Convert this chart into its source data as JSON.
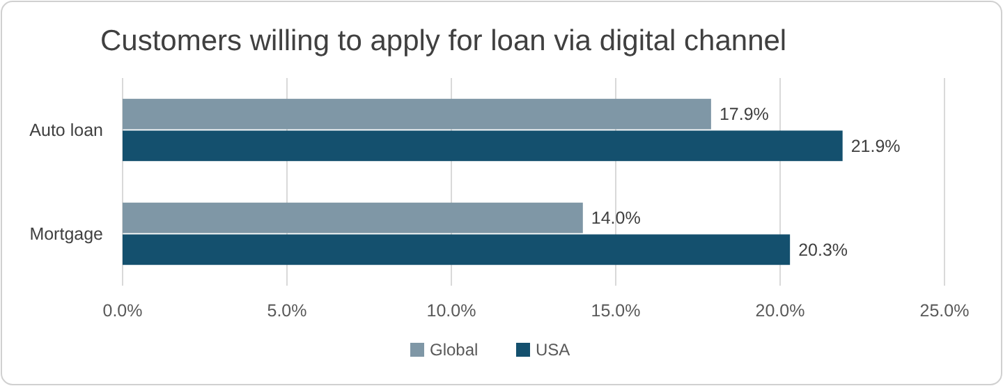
{
  "chart_data": {
    "type": "bar",
    "orientation": "horizontal",
    "title": "Customers willing to apply for loan via digital channel",
    "categories": [
      "Auto loan",
      "Mortgage"
    ],
    "series": [
      {
        "name": "Global",
        "color": "#7f97a6",
        "values": [
          17.9,
          14.0
        ],
        "value_labels": [
          "17.9%",
          "14.0%"
        ]
      },
      {
        "name": "USA",
        "color": "#14506e",
        "values": [
          21.9,
          20.3
        ],
        "value_labels": [
          "21.9%",
          "20.3%"
        ]
      }
    ],
    "xlim": [
      0,
      25
    ],
    "xticks": [
      {
        "value": 0,
        "label": "0.0%"
      },
      {
        "value": 5,
        "label": "5.0%"
      },
      {
        "value": 10,
        "label": "10.0%"
      },
      {
        "value": 15,
        "label": "15.0%"
      },
      {
        "value": 20,
        "label": "20.0%"
      },
      {
        "value": 25,
        "label": "25.0%"
      }
    ],
    "grid": "x",
    "legend": "bottom"
  }
}
